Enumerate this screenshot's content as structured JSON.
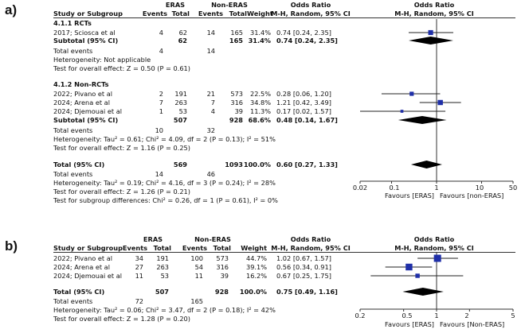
{
  "headers": {
    "group_eras": "ERAS",
    "group_non_eras": "Non-ERAS",
    "study": "Study or Subgroup",
    "events": "Events",
    "total": "Total",
    "weight": "Weight",
    "or_title": "Odds Ratio",
    "or_sub": "M-H, Random, 95% CI"
  },
  "panel_a": {
    "label": "a)",
    "sub1": {
      "title": "4.1.1 RCTs",
      "studies": [
        {
          "name": "2017; Sciosca et al",
          "e1": "4",
          "n1": "62",
          "e2": "14",
          "n2": "165",
          "w": "31.4%",
          "ci": "0.74 [0.24, 2.35]"
        }
      ],
      "subtotal": {
        "label": "Subtotal (95% CI)",
        "n1": "62",
        "n2": "165",
        "w": "31.4%",
        "ci": "0.74 [0.24, 2.35]"
      },
      "total_events": {
        "label": "Total events",
        "e1": "4",
        "e2": "14"
      },
      "het": "Heterogeneity: Not applicable",
      "test": "Test for overall effect: Z = 0.50 (P = 0.61)"
    },
    "sub2": {
      "title": "4.1.2 Non-RCTs",
      "studies": [
        {
          "name": "2022; Pivano et al",
          "e1": "2",
          "n1": "191",
          "e2": "21",
          "n2": "573",
          "w": "22.5%",
          "ci": "0.28 [0.06, 1.20]"
        },
        {
          "name": "2024; Arena et al",
          "e1": "7",
          "n1": "263",
          "e2": "7",
          "n2": "316",
          "w": "34.8%",
          "ci": "1.21 [0.42, 3.49]"
        },
        {
          "name": "2024; Djemouai et al",
          "e1": "1",
          "n1": "53",
          "e2": "4",
          "n2": "39",
          "w": "11.3%",
          "ci": "0.17 [0.02, 1.57]"
        }
      ],
      "subtotal": {
        "label": "Subtotal (95% CI)",
        "n1": "507",
        "n2": "928",
        "w": "68.6%",
        "ci": "0.48 [0.14, 1.67]"
      },
      "total_events": {
        "label": "Total events",
        "e1": "10",
        "e2": "32"
      },
      "het": "Heterogeneity: Tau² = 0.61; Chi² = 4.09, df = 2 (P = 0.13); I² = 51%",
      "test": "Test for overall effect: Z = 1.16 (P = 0.25)"
    },
    "total": {
      "label": "Total (95% CI)",
      "n1": "569",
      "n2": "1093",
      "w": "100.0%",
      "ci": "0.60 [0.27, 1.33]"
    },
    "total_events": {
      "label": "Total events",
      "e1": "14",
      "e2": "46"
    },
    "het": "Heterogeneity: Tau² = 0.19; Chi² = 4.16, df = 3 (P = 0.24); I² = 28%",
    "test": "Test for overall effect: Z = 1.26 (P = 0.21)",
    "subgroup": "Test for subgroup differences: Chi² = 0.26, df = 1 (P = 0.61), I² = 0%",
    "favours_left": "Favours [ERAS]",
    "favours_right": "Favours [non-ERAS]"
  },
  "panel_b": {
    "label": "b)",
    "studies": [
      {
        "name": "2022; Pivano et al",
        "e1": "34",
        "n1": "191",
        "e2": "100",
        "n2": "573",
        "w": "44.7%",
        "ci": "1.02 [0.67, 1.57]"
      },
      {
        "name": "2024; Arena et al",
        "e1": "27",
        "n1": "263",
        "e2": "54",
        "n2": "316",
        "w": "39.1%",
        "ci": "0.56 [0.34, 0.91]"
      },
      {
        "name": "2024; Djemouai et al",
        "e1": "11",
        "n1": "53",
        "e2": "11",
        "n2": "39",
        "w": "16.2%",
        "ci": "0.67 [0.25, 1.75]"
      }
    ],
    "total": {
      "label": "Total (95% CI)",
      "n1": "507",
      "n2": "928",
      "w": "100.0%",
      "ci": "0.75 [0.49, 1.16]"
    },
    "total_events": {
      "label": "Total events",
      "e1": "72",
      "e2": "165"
    },
    "het": "Heterogeneity: Tau² = 0.06; Chi² = 3.47, df = 2 (P = 0.18); I² = 42%",
    "test": "Test for overall effect: Z = 1.28 (P = 0.20)",
    "favours_left": "Favours [ERAS]",
    "favours_right": "Favours [Non-ERAS]"
  },
  "chart_data": [
    {
      "type": "forest",
      "title": "Odds Ratio M-H, Random, 95% CI",
      "scale": "log",
      "xlim": [
        0.02,
        50
      ],
      "ticks": [
        "0.02",
        "0.1",
        "1",
        "10",
        "50"
      ],
      "xlabel_left": "Favours [ERAS]",
      "xlabel_right": "Favours [non-ERAS]",
      "colors": {
        "study": "#1f2fa8",
        "pooled": "#000000"
      },
      "series": [
        {
          "name": "2017; Sciosca et al",
          "or": 0.74,
          "lo": 0.24,
          "hi": 2.35,
          "weight": 31.4
        },
        {
          "name": "Subtotal RCTs",
          "or": 0.74,
          "lo": 0.24,
          "hi": 2.35,
          "pooled": true
        },
        {
          "name": "2022; Pivano et al",
          "or": 0.28,
          "lo": 0.06,
          "hi": 1.2,
          "weight": 22.5
        },
        {
          "name": "2024; Arena et al",
          "or": 1.21,
          "lo": 0.42,
          "hi": 3.49,
          "weight": 34.8
        },
        {
          "name": "2024; Djemouai et al",
          "or": 0.17,
          "lo": 0.02,
          "hi": 1.57,
          "weight": 11.3
        },
        {
          "name": "Subtotal Non-RCTs",
          "or": 0.48,
          "lo": 0.14,
          "hi": 1.67,
          "pooled": true
        },
        {
          "name": "Total",
          "or": 0.6,
          "lo": 0.27,
          "hi": 1.33,
          "pooled": true
        }
      ]
    },
    {
      "type": "forest",
      "title": "Odds Ratio M-H, Random, 95% CI",
      "scale": "log",
      "xlim": [
        0.2,
        5
      ],
      "ticks": [
        "0.2",
        "0.5",
        "1",
        "2",
        "5"
      ],
      "xlabel_left": "Favours [ERAS]",
      "xlabel_right": "Favours [Non-ERAS]",
      "colors": {
        "study": "#1f2fa8",
        "pooled": "#000000"
      },
      "series": [
        {
          "name": "2022; Pivano et al",
          "or": 1.02,
          "lo": 0.67,
          "hi": 1.57,
          "weight": 44.7
        },
        {
          "name": "2024; Arena et al",
          "or": 0.56,
          "lo": 0.34,
          "hi": 0.91,
          "weight": 39.1
        },
        {
          "name": "2024; Djemouai et al",
          "or": 0.67,
          "lo": 0.25,
          "hi": 1.75,
          "weight": 16.2
        },
        {
          "name": "Total",
          "or": 0.75,
          "lo": 0.49,
          "hi": 1.16,
          "pooled": true
        }
      ]
    }
  ]
}
